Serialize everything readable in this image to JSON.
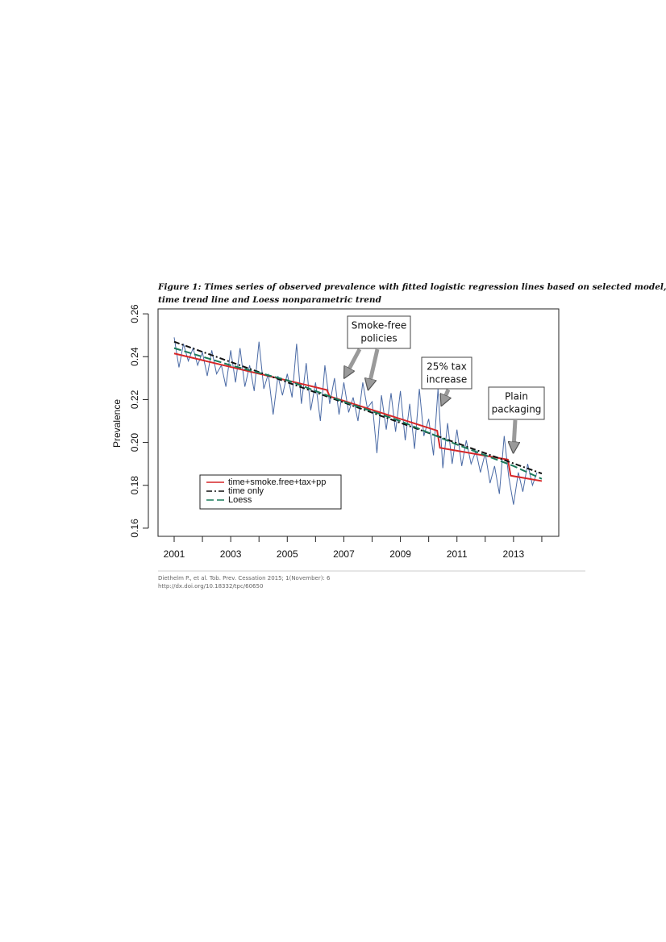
{
  "chart_data": {
    "type": "line",
    "title_lines": [
      "Figure 1: Times series of observed prevalence with fitted logistic regression lines based on selected model,",
      "time trend line and Loess nonparametric trend"
    ],
    "ylabel": "Prevalence",
    "xlim": [
      2000.43,
      2014.6
    ],
    "ylim": [
      0.1562,
      0.2623
    ],
    "xticks": [
      2001,
      2003,
      2005,
      2007,
      2009,
      2011,
      2013
    ],
    "xminorticks": [
      2002,
      2004,
      2006,
      2008,
      2010,
      2012,
      2014
    ],
    "yticks": [
      0.16,
      0.18,
      {
        "value": 0.2,
        "label": "0.20"
      },
      0.22,
      0.24,
      0.26
    ],
    "series": [
      {
        "color": "#4a6aa5",
        "dash": "solid",
        "x": [
          2001,
          2001.17,
          2001.33,
          2001.5,
          2001.67,
          2001.83,
          2002,
          2002.17,
          2002.33,
          2002.5,
          2002.67,
          2002.83,
          2003,
          2003.17,
          2003.33,
          2003.5,
          2003.67,
          2003.83,
          2004,
          2004.17,
          2004.33,
          2004.5,
          2004.67,
          2004.83,
          2005,
          2005.17,
          2005.33,
          2005.5,
          2005.67,
          2005.83,
          2006,
          2006.17,
          2006.33,
          2006.5,
          2006.67,
          2006.83,
          2007,
          2007.17,
          2007.33,
          2007.5,
          2007.67,
          2007.83,
          2008,
          2008.17,
          2008.33,
          2008.5,
          2008.67,
          2008.83,
          2009,
          2009.17,
          2009.33,
          2009.5,
          2009.67,
          2009.83,
          2010,
          2010.17,
          2010.33,
          2010.5,
          2010.67,
          2010.83,
          2011,
          2011.17,
          2011.33,
          2011.5,
          2011.67,
          2011.83,
          2012,
          2012.17,
          2012.33,
          2012.5,
          2012.67,
          2012.83,
          2013,
          2013.17,
          2013.33,
          2013.5,
          2013.67,
          2013.83
        ],
        "values": [
          0.249,
          0.235,
          0.246,
          0.238,
          0.244,
          0.236,
          0.242,
          0.231,
          0.243,
          0.232,
          0.236,
          0.226,
          0.243,
          0.228,
          0.244,
          0.226,
          0.236,
          0.224,
          0.247,
          0.225,
          0.232,
          0.213,
          0.231,
          0.222,
          0.232,
          0.221,
          0.246,
          0.218,
          0.237,
          0.215,
          0.228,
          0.21,
          0.236,
          0.218,
          0.23,
          0.213,
          0.228,
          0.214,
          0.221,
          0.21,
          0.228,
          0.216,
          0.219,
          0.195,
          0.222,
          0.206,
          0.223,
          0.205,
          0.224,
          0.201,
          0.218,
          0.197,
          0.225,
          0.203,
          0.211,
          0.194,
          0.225,
          0.188,
          0.209,
          0.19,
          0.206,
          0.189,
          0.201,
          0.19,
          0.196,
          0.186,
          0.195,
          0.181,
          0.189,
          0.176,
          0.203,
          0.184,
          0.171,
          0.186,
          0.177,
          0.19,
          0.18,
          0.186
        ]
      },
      {
        "name": "time+smoke.free+tax+pp",
        "color": "#d62728",
        "dash": "solid",
        "x": [
          2001,
          2006.4,
          2006.5,
          2010.3,
          2010.4,
          2012.8,
          2012.9,
          2014
        ],
        "values": [
          0.2415,
          0.2245,
          0.2215,
          0.2055,
          0.1975,
          0.192,
          0.1845,
          0.182
        ]
      },
      {
        "name": "time only",
        "color": "#111111",
        "dash": "dashdot",
        "x": [
          2001,
          2014
        ],
        "values": [
          0.247,
          0.1855
        ]
      },
      {
        "name": "Loess",
        "color": "#1a7a5a",
        "dash": "dashed",
        "x": [
          2001,
          2003,
          2005,
          2007,
          2009,
          2011,
          2013,
          2014
        ],
        "values": [
          0.244,
          0.236,
          0.229,
          0.219,
          0.21,
          0.199,
          0.189,
          0.183
        ]
      }
    ],
    "annotations": [
      {
        "lines": [
          "Smoke-free",
          "policies"
        ]
      },
      {
        "lines": [
          "25% tax",
          "increase"
        ]
      },
      {
        "lines": [
          "Plain",
          "packaging"
        ]
      }
    ]
  },
  "footer": {
    "lines": [
      "Diethelm P., et al. Tob. Prev. Cessation 2015; 1(November): 6",
      "http://dx.doi.org/10.18332/tpc/60650"
    ]
  }
}
